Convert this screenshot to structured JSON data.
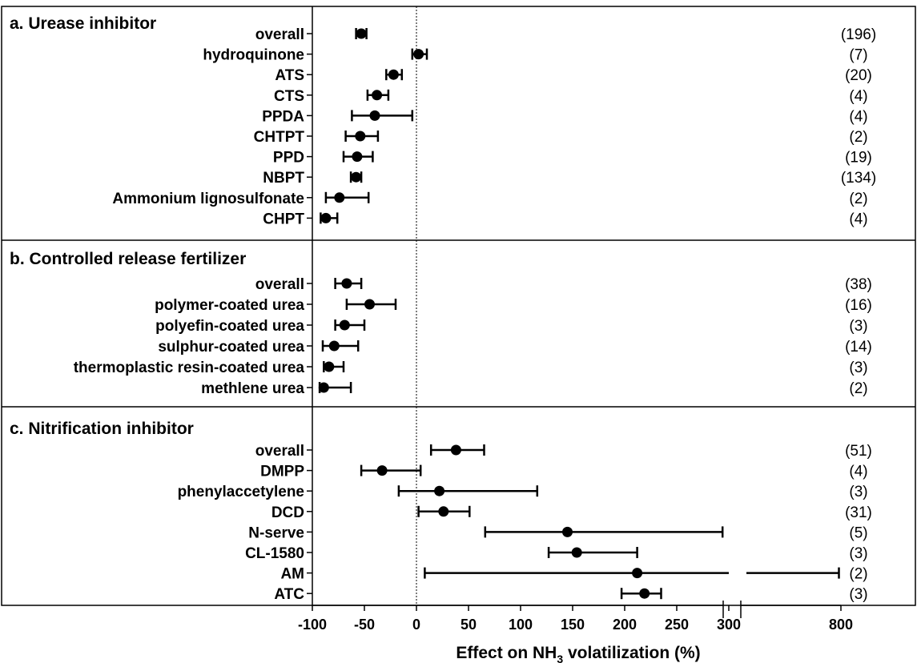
{
  "chart_data": {
    "type": "forest",
    "xlabel": "Effect on NH3 volatilization (%)",
    "xlabel_main": "Effect on NH",
    "xlabel_sub": "3",
    "xlabel_rest": " volatilization (%)",
    "x_ticks": [
      "-100",
      "-50",
      "0",
      "50",
      "100",
      "150",
      "200",
      "250",
      "300",
      "800"
    ],
    "x_axis_break": [
      300,
      800
    ],
    "reference_line": 0,
    "panels": [
      {
        "title": "a. Urease inhibitor",
        "items": [
          {
            "label": "overall",
            "mean": -53,
            "lo": -58,
            "hi": -48,
            "n": "(196)"
          },
          {
            "label": "hydroquinone",
            "mean": 2,
            "lo": -4,
            "hi": 10,
            "n": "(7)"
          },
          {
            "label": "ATS",
            "mean": -22,
            "lo": -29,
            "hi": -14,
            "n": "(20)"
          },
          {
            "label": "CTS",
            "mean": -38,
            "lo": -47,
            "hi": -27,
            "n": "(4)"
          },
          {
            "label": "PPDA",
            "mean": -40,
            "lo": -62,
            "hi": -4,
            "n": "(4)"
          },
          {
            "label": "CHTPT",
            "mean": -54,
            "lo": -68,
            "hi": -37,
            "n": "(2)"
          },
          {
            "label": "PPD",
            "mean": -57,
            "lo": -70,
            "hi": -42,
            "n": "(19)"
          },
          {
            "label": "NBPT",
            "mean": -58,
            "lo": -63,
            "hi": -53,
            "n": "(134)"
          },
          {
            "label": "Ammonium lignosulfonate",
            "mean": -74,
            "lo": -87,
            "hi": -46,
            "n": "(2)"
          },
          {
            "label": "CHPT",
            "mean": -87,
            "lo": -92,
            "hi": -76,
            "n": "(4)"
          }
        ]
      },
      {
        "title": "b. Controlled release fertilizer",
        "items": [
          {
            "label": "overall",
            "mean": -67,
            "lo": -78,
            "hi": -53,
            "n": "(38)"
          },
          {
            "label": "polymer-coated urea",
            "mean": -45,
            "lo": -67,
            "hi": -20,
            "n": "(16)"
          },
          {
            "label": "polyefin-coated urea",
            "mean": -69,
            "lo": -78,
            "hi": -50,
            "n": "(3)"
          },
          {
            "label": "sulphur-coated urea",
            "mean": -79,
            "lo": -90,
            "hi": -56,
            "n": "(14)"
          },
          {
            "label": "thermoplastic resin-coated urea",
            "mean": -84,
            "lo": -89,
            "hi": -70,
            "n": "(3)"
          },
          {
            "label": "methlene urea",
            "mean": -89,
            "lo": -93,
            "hi": -63,
            "n": "(2)"
          }
        ]
      },
      {
        "title": "c. Nitrification inhibitor",
        "items": [
          {
            "label": "overall",
            "mean": 38,
            "lo": 14,
            "hi": 65,
            "n": "(51)"
          },
          {
            "label": "DMPP",
            "mean": -33,
            "lo": -53,
            "hi": 4,
            "n": "(4)"
          },
          {
            "label": "phenylaccetylene",
            "mean": 22,
            "lo": -17,
            "hi": 116,
            "n": "(3)"
          },
          {
            "label": "DCD",
            "mean": 26,
            "lo": 2,
            "hi": 51,
            "n": "(31)"
          },
          {
            "label": "N-serve",
            "mean": 145,
            "lo": 66,
            "hi": 294,
            "n": "(5)"
          },
          {
            "label": "CL-1580",
            "mean": 154,
            "lo": 127,
            "hi": 212,
            "n": "(3)"
          },
          {
            "label": "AM",
            "mean": 212,
            "lo": 8,
            "hi": 790,
            "n": "(2)"
          },
          {
            "label": "ATC",
            "mean": 219,
            "lo": 197,
            "hi": 235,
            "n": "(3)"
          }
        ]
      }
    ]
  }
}
